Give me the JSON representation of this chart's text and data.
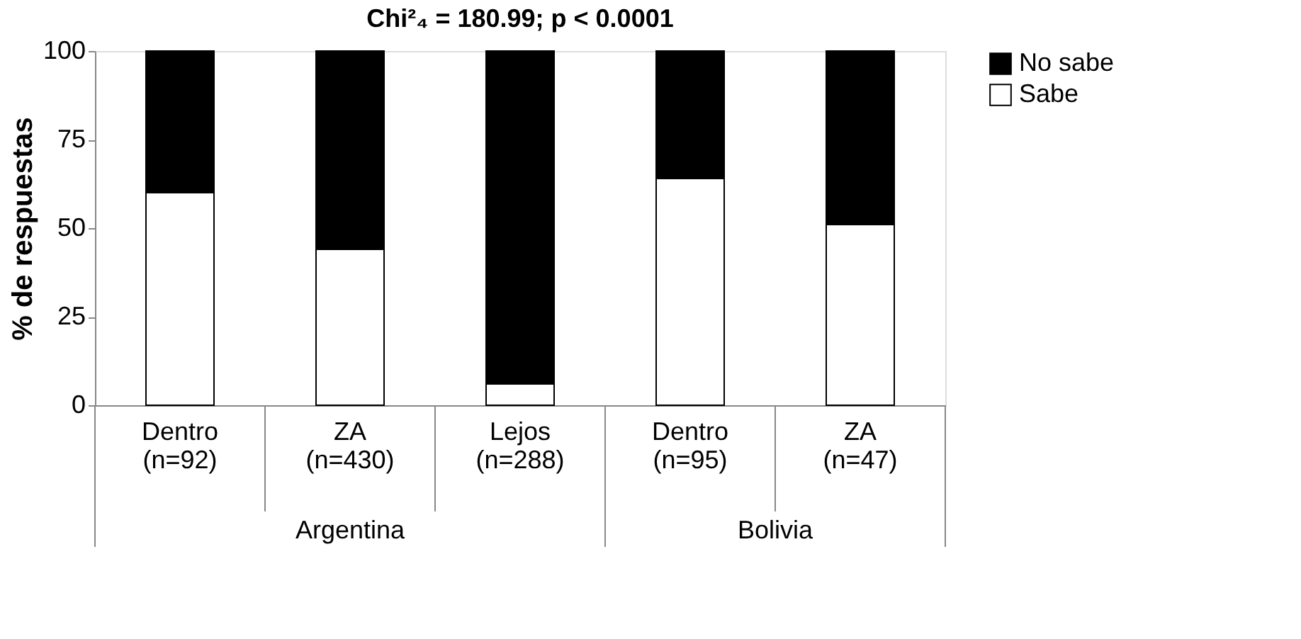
{
  "chart_data": {
    "type": "bar",
    "title": "Chi²₄ = 180.99; p < 0.0001",
    "ylabel": "% de respuestas",
    "categories": [
      "Dentro (n=92)",
      "ZA (n=430)",
      "Lejos (n=288)",
      "Dentro (n=95)",
      "ZA (n=47)"
    ],
    "series": [
      {
        "name": "Sabe",
        "color": "#ffffff",
        "values": [
          60,
          44,
          6,
          64,
          51
        ]
      },
      {
        "name": "No sabe",
        "color": "#000000",
        "values": [
          40,
          56,
          94,
          36,
          49
        ]
      }
    ],
    "stacked": true,
    "ylim": [
      0,
      100
    ],
    "yticks": [
      0,
      25,
      50,
      75,
      100
    ],
    "grid": false,
    "legend": "right",
    "annotations": [
      "Argentina",
      "Bolivia"
    ]
  }
}
